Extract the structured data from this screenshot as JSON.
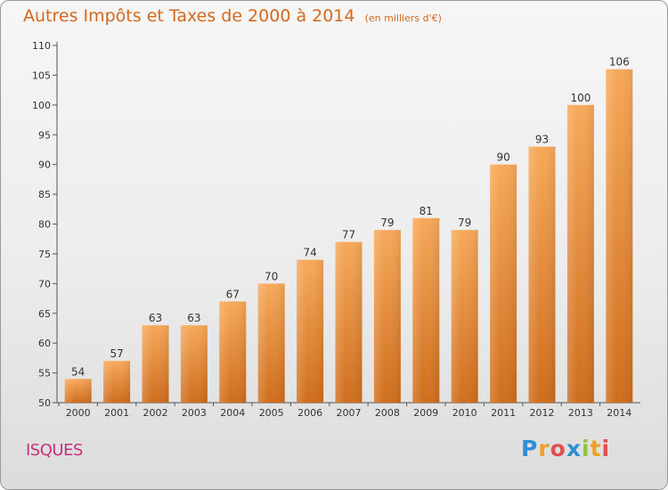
{
  "header": {
    "title": "Autres Impôts et Taxes de 2000 à 2014",
    "unit": "(en milliers d'€)"
  },
  "footer": {
    "commune": "ISQUES",
    "logo_letters": [
      "P",
      "r",
      "o",
      "x",
      "i",
      "t",
      "i"
    ],
    "logo_colors": [
      "#2f8fd6",
      "#f0a020",
      "#e05050",
      "#2f8fd6",
      "#8cc63f",
      "#f0a020",
      "#e05050"
    ]
  },
  "chart_data": {
    "type": "bar",
    "title": "Autres Impôts et Taxes de 2000 à 2014",
    "subtitle": "(en milliers d'€)",
    "categories": [
      "2000",
      "2001",
      "2002",
      "2003",
      "2004",
      "2005",
      "2006",
      "2007",
      "2008",
      "2009",
      "2010",
      "2011",
      "2012",
      "2013",
      "2014"
    ],
    "values": [
      54,
      57,
      63,
      63,
      67,
      70,
      74,
      77,
      79,
      81,
      79,
      90,
      93,
      100,
      106
    ],
    "ylim": [
      50,
      110
    ],
    "yticks": [
      50,
      55,
      60,
      65,
      70,
      75,
      80,
      85,
      90,
      95,
      100,
      105,
      110
    ],
    "grid": false,
    "bar_color_top": "#f7a95a",
    "bar_color_bottom": "#cf6d1c"
  }
}
